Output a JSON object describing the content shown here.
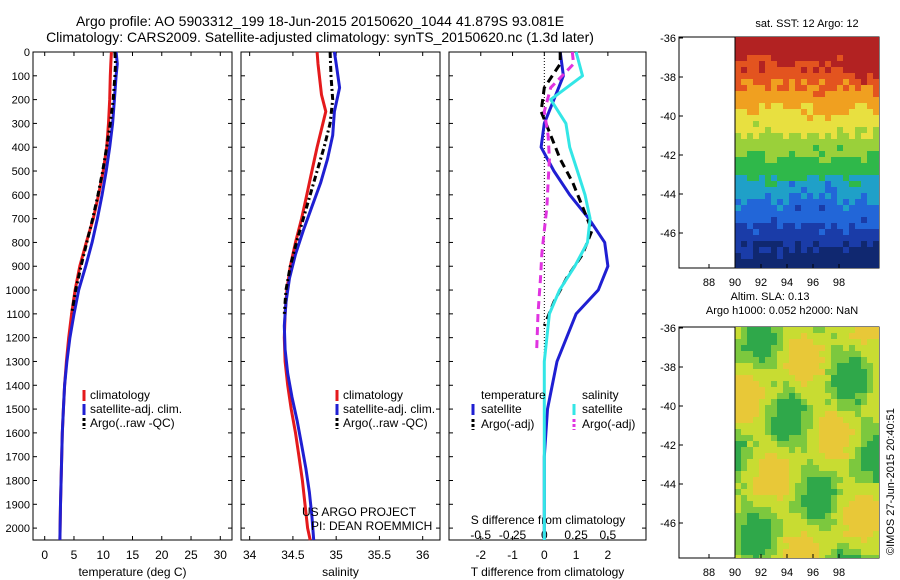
{
  "title": {
    "line1": "Argo profile: AO 5903312_199 18-Jun-2015 20150620_1044 41.879S 93.081E",
    "line2": "Climatology: CARS2009. Satellite-adjusted climatology: synTS_20150620.nc (1.3d later)"
  },
  "colors": {
    "climatology": "#e41a1c",
    "satellite": "#1f1fd2",
    "argo": "#000000",
    "sat_salinity": "#33e6e6",
    "argo_salinity": "#e033e0"
  },
  "annotations": {
    "project": "US ARGO PROJECT",
    "pi": "PI: DEAN ROEMMICH"
  },
  "stamp": "©IMOS 27-Jun-2015 20:40:51",
  "maps": [
    {
      "title": "sat. SST: 12 Argo: 12",
      "ylabels": [
        "-36",
        "-38",
        "-40",
        "-42",
        "-44",
        "-46"
      ],
      "xlabels": [
        "88",
        "90",
        "92",
        "94",
        "96",
        "98"
      ],
      "type": "sst"
    },
    {
      "title1": "Altim. SLA: 0.13",
      "title2": "Argo h1000: 0.052 h2000: NaN",
      "ylabels": [
        "-36",
        "-38",
        "-40",
        "-42",
        "-44",
        "-46"
      ],
      "xlabels": [
        "88",
        "90",
        "92",
        "94",
        "96",
        "98"
      ],
      "type": "sla"
    }
  ],
  "chart_data": [
    {
      "type": "line",
      "xlabel": "temperature (deg C)",
      "ylabel": "",
      "xlim": [
        -2,
        32
      ],
      "ylim": [
        2050,
        0
      ],
      "xticks": [
        0,
        5,
        10,
        15,
        20,
        25,
        30
      ],
      "yticks": [
        0,
        100,
        200,
        300,
        400,
        500,
        600,
        700,
        800,
        900,
        1000,
        1100,
        1200,
        1300,
        1400,
        1500,
        1600,
        1700,
        1800,
        1900,
        2000
      ],
      "legend": [
        "climatology",
        "satellite-adj. clim.",
        "Argo(..raw -QC)"
      ],
      "series": [
        {
          "name": "climatology",
          "style": "solid",
          "color": "#e41a1c",
          "x": [
            11.4,
            11.3,
            11.2,
            11.1,
            10.9,
            10.6,
            10.0,
            9.2,
            8.3,
            7.1,
            6.0,
            5.2,
            4.6,
            4.1,
            3.7,
            3.4,
            3.2,
            3.0,
            2.9,
            2.8,
            2.7,
            2.6
          ],
          "y": [
            0,
            50,
            100,
            200,
            300,
            400,
            500,
            600,
            700,
            800,
            900,
            1000,
            1100,
            1200,
            1300,
            1400,
            1500,
            1600,
            1700,
            1800,
            1900,
            2050
          ]
        },
        {
          "name": "satellite-adj. clim.",
          "style": "solid",
          "color": "#1f1fd2",
          "x": [
            12.2,
            12.4,
            12.2,
            11.9,
            11.6,
            11.1,
            10.5,
            9.8,
            9.0,
            8.1,
            7.0,
            5.8,
            5.0,
            4.3,
            3.8,
            3.4,
            3.2,
            3.0,
            2.9,
            2.8,
            2.7,
            2.6
          ],
          "y": [
            0,
            50,
            100,
            200,
            300,
            400,
            500,
            600,
            700,
            800,
            900,
            1000,
            1100,
            1200,
            1300,
            1400,
            1500,
            1600,
            1700,
            1800,
            1900,
            2050
          ]
        },
        {
          "name": "Argo(..raw -QC)",
          "style": "dashdot",
          "color": "#000000",
          "x": [
            12.0,
            12.1,
            12.0,
            11.7,
            11.2,
            10.6,
            9.9,
            9.1,
            8.2,
            7.2,
            6.2,
            5.3,
            4.6
          ],
          "y": [
            0,
            50,
            100,
            200,
            300,
            400,
            500,
            600,
            700,
            800,
            900,
            1000,
            1100
          ]
        }
      ]
    },
    {
      "type": "line",
      "xlabel": "salinity",
      "ylabel": "",
      "xlim": [
        33.9,
        36.2
      ],
      "ylim": [
        2050,
        0
      ],
      "xticks": [
        34,
        34.5,
        35,
        35.5,
        36
      ],
      "legend": [
        "climatology",
        "satellite-adj. clim.",
        "Argo(..raw -QC)"
      ],
      "series": [
        {
          "name": "climatology",
          "style": "solid",
          "color": "#e41a1c",
          "x": [
            34.78,
            34.79,
            34.83,
            34.88,
            34.78,
            34.72,
            34.66,
            34.6,
            34.53,
            34.47,
            34.43,
            34.41,
            34.4,
            34.41,
            34.44,
            34.48,
            34.53,
            34.57,
            34.61,
            34.64,
            34.67,
            34.7
          ],
          "y": [
            0,
            50,
            180,
            250,
            400,
            500,
            600,
            700,
            800,
            900,
            1000,
            1100,
            1200,
            1300,
            1400,
            1500,
            1600,
            1700,
            1800,
            1900,
            2000,
            2050
          ]
        },
        {
          "name": "satellite-adj. clim.",
          "style": "solid",
          "color": "#1f1fd2",
          "x": [
            34.98,
            35.0,
            35.04,
            34.98,
            34.96,
            34.9,
            34.82,
            34.72,
            34.62,
            34.53,
            34.46,
            34.42,
            34.4,
            34.41,
            34.44,
            34.49,
            34.55,
            34.6,
            34.65,
            34.69,
            34.72,
            34.74
          ],
          "y": [
            0,
            50,
            150,
            250,
            350,
            450,
            550,
            650,
            750,
            850,
            950,
            1050,
            1150,
            1250,
            1350,
            1450,
            1550,
            1650,
            1750,
            1850,
            1950,
            2050
          ]
        },
        {
          "name": "Argo(..raw -QC)",
          "style": "dashdot",
          "color": "#000000",
          "x": [
            34.93,
            34.94,
            34.96,
            34.93,
            34.86,
            34.78,
            34.7,
            34.62,
            34.54,
            34.47,
            34.42,
            34.4
          ],
          "y": [
            0,
            100,
            200,
            300,
            400,
            500,
            600,
            700,
            800,
            900,
            1000,
            1100
          ]
        }
      ]
    },
    {
      "type": "line",
      "xlabel": "T difference from climatology",
      "xlabel2": "S difference from climatology",
      "xlim": [
        -3,
        3.2
      ],
      "ylim": [
        2050,
        0
      ],
      "xticks": [
        -2,
        -1,
        0,
        1,
        2
      ],
      "xticks_top": [
        -0.5,
        -0.25,
        0,
        0.25,
        0.5
      ],
      "xticks_top_labels": [
        "-0.5",
        "-0.25",
        "0",
        "0.25",
        "0.5"
      ],
      "legend": {
        "temperature_head": "temperature",
        "salinity_head": "salinity",
        "entries": [
          "satellite",
          "Argo(-adj)",
          "satellite",
          "Argo(-adj)"
        ]
      },
      "series": [
        {
          "name": "satellite",
          "group": "temperature",
          "style": "solid",
          "color": "#1f1fd2",
          "x": [
            0.5,
            0.6,
            0.3,
            0.0,
            -0.1,
            0.3,
            0.8,
            1.4,
            1.9,
            2.0,
            1.7,
            1.0,
            0.4,
            0.1,
            0.0,
            0.0,
            0.0
          ],
          "y": [
            0,
            100,
            200,
            300,
            400,
            500,
            600,
            700,
            800,
            900,
            1000,
            1100,
            1300,
            1500,
            1700,
            1900,
            2050
          ]
        },
        {
          "name": "Argo(-adj)",
          "group": "temperature",
          "style": "dashed",
          "color": "#000000",
          "x": [
            0.5,
            0.5,
            0.0,
            -0.1,
            0.2,
            0.5,
            0.9,
            1.2,
            1.5,
            1.2,
            0.7,
            0.3,
            0.0
          ],
          "y": [
            0,
            50,
            150,
            250,
            350,
            450,
            550,
            650,
            750,
            850,
            950,
            1050,
            1150
          ]
        },
        {
          "name": "satellite",
          "group": "salinity",
          "style": "solid",
          "color": "#33e6e6",
          "x": [
            0.25,
            0.3,
            0.05,
            0.17,
            0.2,
            0.26,
            0.32,
            0.36,
            0.34,
            0.24,
            0.12,
            0.04,
            0.0,
            0.0,
            0.0,
            0.0
          ],
          "y": [
            0,
            100,
            200,
            300,
            400,
            500,
            600,
            700,
            800,
            900,
            1000,
            1100,
            1300,
            1500,
            1700,
            2050
          ]
        },
        {
          "name": "Argo(-adj)",
          "group": "salinity",
          "style": "dashed",
          "color": "#e033e0",
          "x": [
            0.22,
            0.23,
            0.05,
            0.0,
            0.03,
            0.04,
            0.03,
            0.02,
            0.0,
            -0.02,
            -0.03,
            -0.05,
            -0.06
          ],
          "y": [
            0,
            50,
            150,
            250,
            350,
            450,
            550,
            650,
            750,
            850,
            950,
            1100,
            1250
          ]
        }
      ]
    }
  ]
}
